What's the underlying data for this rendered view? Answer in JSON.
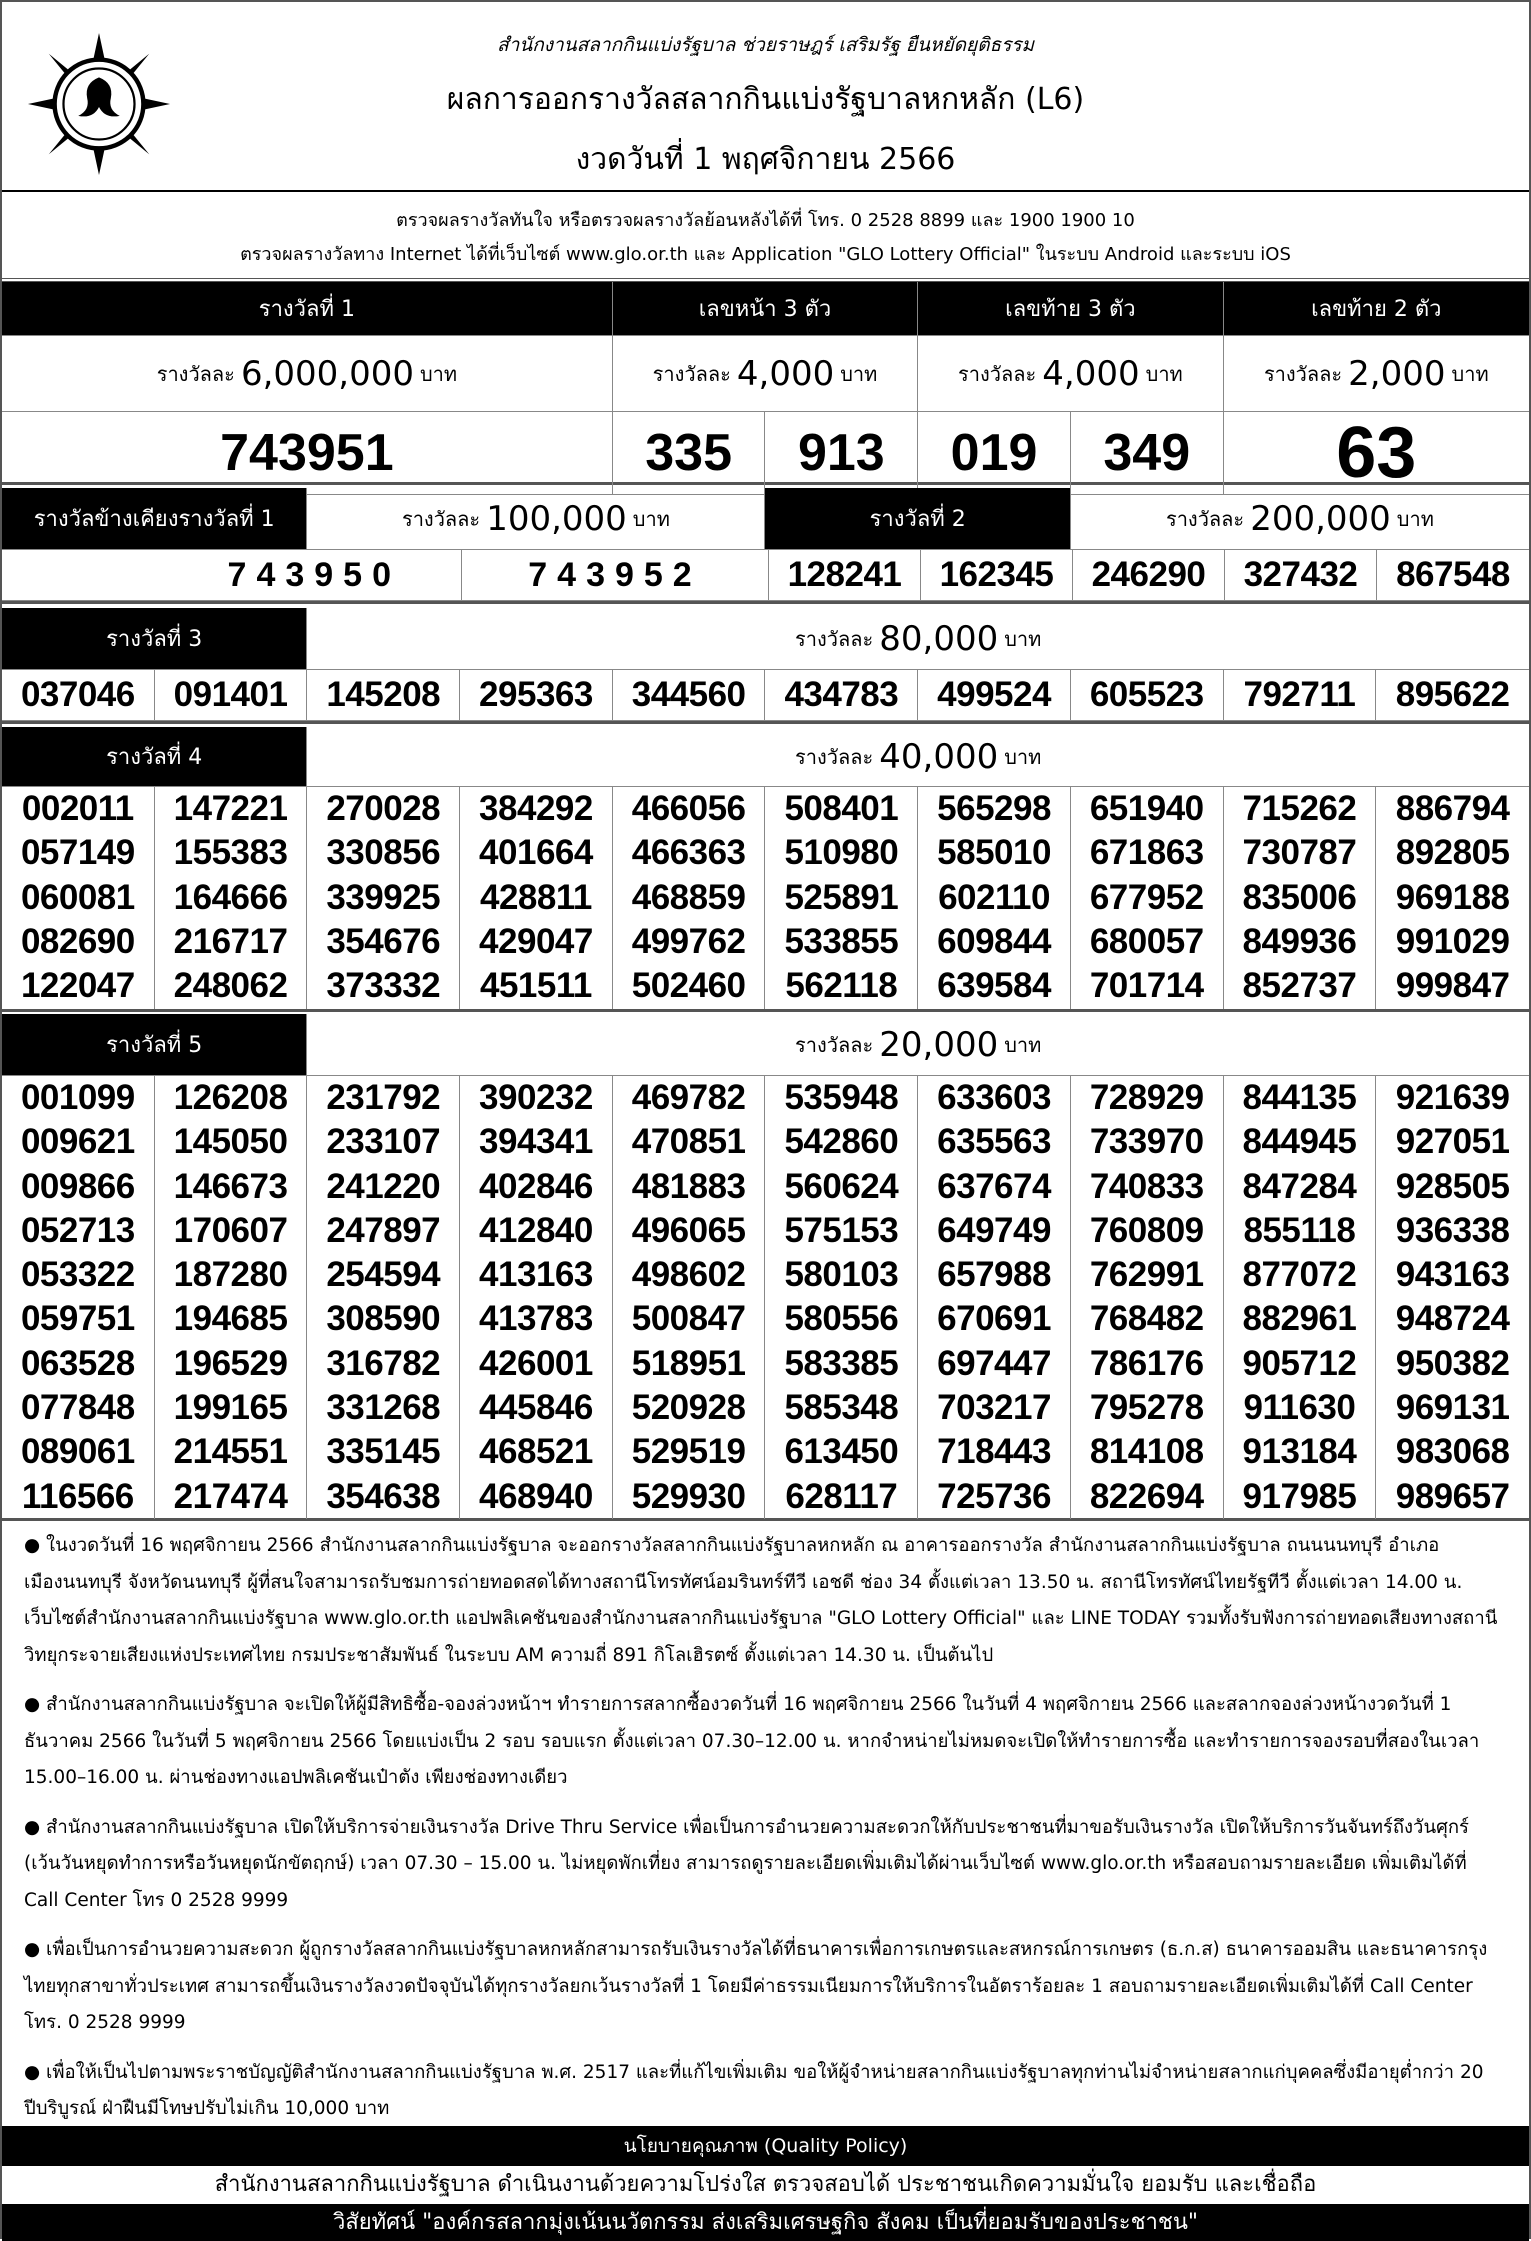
{
  "header": {
    "motto": "สำนักงานสลากกินแบ่งรัฐบาล   ช่วยราษฎร์   เสริมรัฐ   ยืนหยัดยุติธรรม",
    "title": "ผลการออกรางวัลสลากกินแบ่งรัฐบาลหกหลัก (L6)",
    "draw_date": "งวดวันที่ 1 พฤศจิกายน 2566",
    "logo_icon": "glo-emblem-icon"
  },
  "info": {
    "line1": "ตรวจผลรางวัลทันใจ  หรือตรวจผลรางวัลย้อนหลังได้ที่  โทร. 0 2528 8899 และ 1900 1900 10",
    "line2": "ตรวจผลรางวัลทาง Internet ได้ที่เว็บไซต์  www.glo.or.th และ Application \"GLO Lottery Official\" ในระบบ Android และระบบ iOS"
  },
  "top": {
    "first": {
      "label": "รางวัลที่ 1",
      "prefix": "รางวัลละ",
      "amount": "6,000,000",
      "unit": "บาท",
      "number": "743951"
    },
    "front3": {
      "label": "เลขหน้า 3 ตัว",
      "prefix": "รางวัลละ",
      "amount": "4,000",
      "unit": "บาท",
      "numbers": [
        "335",
        "913"
      ]
    },
    "back3": {
      "label": "เลขท้าย 3 ตัว",
      "prefix": "รางวัลละ",
      "amount": "4,000",
      "unit": "บาท",
      "numbers": [
        "019",
        "349"
      ]
    },
    "back2": {
      "label": "เลขท้าย 2 ตัว",
      "prefix": "รางวัลละ",
      "amount": "2,000",
      "unit": "บาท",
      "number": "63"
    }
  },
  "adjacent": {
    "label": "รางวัลข้างเคียงรางวัลที่ 1",
    "prefix": "รางวัลละ",
    "amount": "100,000",
    "unit": "บาท",
    "numbers": [
      "743950",
      "743952"
    ]
  },
  "prize2": {
    "label": "รางวัลที่  2",
    "prefix": "รางวัลละ",
    "amount": "200,000",
    "unit": "บาท",
    "numbers": [
      "128241",
      "162345",
      "246290",
      "327432",
      "867548"
    ]
  },
  "prize3": {
    "label": "รางวัลที่  3",
    "prefix": "รางวัลละ",
    "amount": "80,000",
    "unit": "บาท",
    "numbers": [
      "037046",
      "091401",
      "145208",
      "295363",
      "344560",
      "434783",
      "499524",
      "605523",
      "792711",
      "895622"
    ]
  },
  "prize4": {
    "label": "รางวัลที่  4",
    "prefix": "รางวัลละ",
    "amount": "40,000",
    "unit": "บาท",
    "columns": [
      [
        "002011",
        "057149",
        "060081",
        "082690",
        "122047"
      ],
      [
        "147221",
        "155383",
        "164666",
        "216717",
        "248062"
      ],
      [
        "270028",
        "330856",
        "339925",
        "354676",
        "373332"
      ],
      [
        "384292",
        "401664",
        "428811",
        "429047",
        "451511"
      ],
      [
        "466056",
        "466363",
        "468859",
        "499762",
        "502460"
      ],
      [
        "508401",
        "510980",
        "525891",
        "533855",
        "562118"
      ],
      [
        "565298",
        "585010",
        "602110",
        "609844",
        "639584"
      ],
      [
        "651940",
        "671863",
        "677952",
        "680057",
        "701714"
      ],
      [
        "715262",
        "730787",
        "835006",
        "849936",
        "852737"
      ],
      [
        "886794",
        "892805",
        "969188",
        "991029",
        "999847"
      ]
    ]
  },
  "prize5": {
    "label": "รางวัลที่  5",
    "prefix": "รางวัลละ",
    "amount": "20,000",
    "unit": "บาท",
    "columns": [
      [
        "001099",
        "009621",
        "009866",
        "052713",
        "053322",
        "059751",
        "063528",
        "077848",
        "089061",
        "116566"
      ],
      [
        "126208",
        "145050",
        "146673",
        "170607",
        "187280",
        "194685",
        "196529",
        "199165",
        "214551",
        "217474"
      ],
      [
        "231792",
        "233107",
        "241220",
        "247897",
        "254594",
        "308590",
        "316782",
        "331268",
        "335145",
        "354638"
      ],
      [
        "390232",
        "394341",
        "402846",
        "412840",
        "413163",
        "413783",
        "426001",
        "445846",
        "468521",
        "468940"
      ],
      [
        "469782",
        "470851",
        "481883",
        "496065",
        "498602",
        "500847",
        "518951",
        "520928",
        "529519",
        "529930"
      ],
      [
        "535948",
        "542860",
        "560624",
        "575153",
        "580103",
        "580556",
        "583385",
        "585348",
        "613450",
        "628117"
      ],
      [
        "633603",
        "635563",
        "637674",
        "649749",
        "657988",
        "670691",
        "697447",
        "703217",
        "718443",
        "725736"
      ],
      [
        "728929",
        "733970",
        "740833",
        "760809",
        "762991",
        "768482",
        "786176",
        "795278",
        "814108",
        "822694"
      ],
      [
        "844135",
        "844945",
        "847284",
        "855118",
        "877072",
        "882961",
        "905712",
        "911630",
        "913184",
        "917985"
      ],
      [
        "921639",
        "927051",
        "928505",
        "936338",
        "943163",
        "948724",
        "950382",
        "969131",
        "983068",
        "989657"
      ]
    ]
  },
  "notes": [
    "ในงวดวันที่ 16 พฤศจิกายน 2566 สำนักงานสลากกินแบ่งรัฐบาล จะออกรางวัลสลากกินแบ่งรัฐบาลหกหลัก ณ อาคารออกรางวัล สำนักงานสลากกินแบ่งรัฐบาล ถนนนนทบุรี อำเภอเมืองนนทบุรี จังหวัดนนทบุรี ผู้ที่สนใจสามารถรับชมการถ่ายทอดสดได้ทางสถานีโทรทัศน์อมรินทร์ทีวี เอชดี ช่อง 34 ตั้งแต่เวลา 13.50 น. สถานีโทรทัศน์ไทยรัฐทีวี ตั้งแต่เวลา 14.00 น. เว็บไซต์สำนักงานสลากกินแบ่งรัฐบาล www.glo.or.th แอปพลิเคชันของสำนักงานสลากกินแบ่งรัฐบาล \"GLO Lottery Official\" และ LINE TODAY รวมทั้งรับฟังการถ่ายทอดเสียงทางสถานีวิทยุกระจายเสียงแห่งประเทศไทย กรมประชาสัมพันธ์ ในระบบ AM ความถี่ 891 กิโลเฮิรตซ์  ตั้งแต่เวลา 14.30 น. เป็นต้นไป",
    "สำนักงานสลากกินแบ่งรัฐบาล จะเปิดให้ผู้มีสิทธิซื้อ-จองล่วงหน้าฯ ทำรายการสลากซื้องวดวันที่ 16 พฤศจิกายน 2566 ในวันที่ 4 พฤศจิกายน 2566 และสลากจองล่วงหน้างวดวันที่ 1 ธันวาคม 2566 ในวันที่ 5 พฤศจิกายน 2566 โดยแบ่งเป็น 2 รอบ รอบแรก ตั้งแต่เวลา 07.30–12.00 น. หากจำหน่ายไม่หมดจะเปิดให้ทำรายการซื้อ และทำรายการจองรอบที่สองในเวลา 15.00–16.00 น. ผ่านช่องทางแอปพลิเคชันเป๋าตัง เพียงช่องทางเดียว",
    "สำนักงานสลากกินแบ่งรัฐบาล เปิดให้บริการจ่ายเงินรางวัล Drive Thru Service เพื่อเป็นการอำนวยความสะดวกให้กับประชาชนที่มาขอรับเงินรางวัล เปิดให้บริการวันจันทร์ถึงวันศุกร์ (เว้นวันหยุดทำการหรือวันหยุดนักขัตฤกษ์) เวลา 07.30 – 15.00 น. ไม่หยุดพักเที่ยง สามารถดูรายละเอียดเพิ่มเติมได้ผ่านเว็บไซต์ www.glo.or.th หรือสอบถามรายละเอียด เพิ่มเติมได้ที่ Call Center โทร 0 2528 9999",
    "เพื่อเป็นการอำนวยความสะดวก ผู้ถูกรางวัลสลากกินแบ่งรัฐบาลหกหลักสามารถรับเงินรางวัลได้ที่ธนาคารเพื่อการเกษตรและสหกรณ์การเกษตร (ธ.ก.ส) ธนาคารออมสิน และธนาคารกรุงไทยทุกสาขาทั่วประเทศ สามารถขึ้นเงินรางวัลงวดปัจจุบันได้ทุกรางวัลยกเว้นรางวัลที่ 1 โดยมีค่าธรรมเนียมการให้บริการในอัตราร้อยละ 1 สอบถามรายละเอียดเพิ่มเติมได้ที่  Call Center โทร. 0 2528 9999",
    "เพื่อให้เป็นไปตามพระราชบัญญัติสำนักงานสลากกินแบ่งรัฐบาล พ.ศ. 2517 และที่แก้ไขเพิ่มเติม ขอให้ผู้จำหน่ายสลากกินแบ่งรัฐบาลทุกท่านไม่จำหน่ายสลากแก่บุคคลซึ่งมีอายุต่ำกว่า 20 ปีบริบูรณ์ ฝ่าฝืนมีโทษปรับไม่เกิน 10,000 บาท"
  ],
  "footer": {
    "quality_policy_label": "นโยบายคุณภาพ (Quality Policy)",
    "quality_policy_text": "สำนักงานสลากกินแบ่งรัฐบาล ดำเนินงานด้วยความโปร่งใส ตรวจสอบได้ ประชาชนเกิดความมั่นใจ ยอมรับ และเชื่อถือ",
    "vision": "วิสัยทัศน์ \"องค์กรสลากมุ่งเน้นนวัตกรรม ส่งเสริมเศรษฐกิจ สังคม เป็นที่ยอมรับของประชาชน\""
  }
}
